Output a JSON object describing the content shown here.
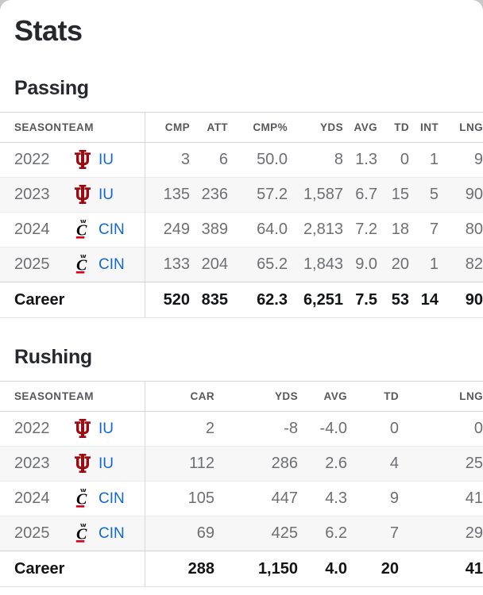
{
  "page_title": "Stats",
  "colors": {
    "link_blue": "#1268D3",
    "iu_crimson": "#9A0C14",
    "cin_black": "#000000",
    "cin_red": "#D6001C",
    "career_text": "#131416",
    "cell_text": "#6D6F72",
    "row_stripe": "#F7F7F8"
  },
  "teams": {
    "IU": {
      "abbr": "IU",
      "logo": "indiana-trident-icon",
      "color": "#9A0C14"
    },
    "CIN": {
      "abbr": "CIN",
      "logo": "cincinnati-c-paw-icon",
      "color": "#000000"
    }
  },
  "sections": [
    {
      "id": "passing",
      "heading": "Passing",
      "columns": [
        "SEASON",
        "TEAM",
        "CMP",
        "ATT",
        "CMP%",
        "YDS",
        "AVG",
        "TD",
        "INT",
        "LNG"
      ],
      "rows": [
        {
          "season": "2022",
          "team": "IU",
          "values": [
            "3",
            "6",
            "50.0",
            "8",
            "1.3",
            "0",
            "1",
            "9"
          ]
        },
        {
          "season": "2023",
          "team": "IU",
          "values": [
            "135",
            "236",
            "57.2",
            "1,587",
            "6.7",
            "15",
            "5",
            "90"
          ]
        },
        {
          "season": "2024",
          "team": "CIN",
          "values": [
            "249",
            "389",
            "64.0",
            "2,813",
            "7.2",
            "18",
            "7",
            "80"
          ]
        },
        {
          "season": "2025",
          "team": "CIN",
          "values": [
            "133",
            "204",
            "65.2",
            "1,843",
            "9.0",
            "20",
            "1",
            "82"
          ]
        }
      ],
      "career": {
        "label": "Career",
        "values": [
          "520",
          "835",
          "62.3",
          "6,251",
          "7.5",
          "53",
          "14",
          "90"
        ]
      }
    },
    {
      "id": "rushing",
      "heading": "Rushing",
      "columns": [
        "SEASON",
        "TEAM",
        "CAR",
        "YDS",
        "AVG",
        "TD",
        "LNG"
      ],
      "rows": [
        {
          "season": "2022",
          "team": "IU",
          "values": [
            "2",
            "-8",
            "-4.0",
            "0",
            "0"
          ]
        },
        {
          "season": "2023",
          "team": "IU",
          "values": [
            "112",
            "286",
            "2.6",
            "4",
            "25"
          ]
        },
        {
          "season": "2024",
          "team": "CIN",
          "values": [
            "105",
            "447",
            "4.3",
            "9",
            "41"
          ]
        },
        {
          "season": "2025",
          "team": "CIN",
          "values": [
            "69",
            "425",
            "6.2",
            "7",
            "29"
          ]
        }
      ],
      "career": {
        "label": "Career",
        "values": [
          "288",
          "1,150",
          "4.0",
          "20",
          "41"
        ]
      }
    }
  ]
}
